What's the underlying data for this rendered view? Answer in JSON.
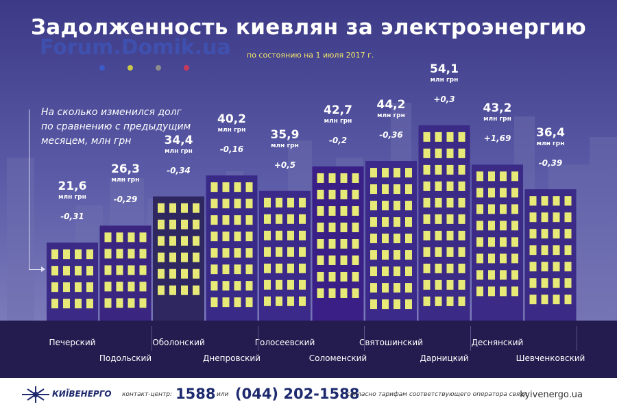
{
  "header": {
    "title": "Задолженность киевлян за электроэнергию",
    "subtitle": "по состоянию на 1 июля 2017 г.",
    "watermark": "Forum.Domik.ua"
  },
  "note": {
    "line1": "На сколько изменился долг",
    "line2": "по сравнению с предыдущим",
    "line3": "месяцем, млн грн"
  },
  "chart_data": {
    "type": "bar",
    "title": "Задолженность киевлян за электроэнергию",
    "subtitle": "по состоянию на 1 июля 2017 г.",
    "unit": "млн грн",
    "categories": [
      "Печерский",
      "Подольский",
      "Оболонский",
      "Днепровский",
      "Голосеевский",
      "Соломенский",
      "Святошинский",
      "Дарницкий",
      "Деснянский",
      "Шевченковский"
    ],
    "values": [
      21.6,
      26.3,
      34.4,
      40.2,
      35.9,
      42.7,
      44.2,
      54.1,
      43.2,
      36.4
    ],
    "value_labels": [
      "21,6",
      "26,3",
      "34,4",
      "40,2",
      "35,9",
      "42,7",
      "44,2",
      "54,1",
      "43,2",
      "36,4"
    ],
    "changes": [
      -0.31,
      -0.29,
      -0.34,
      -0.16,
      0.5,
      -0.2,
      -0.36,
      0.3,
      1.69,
      -0.39
    ],
    "change_labels": [
      "-0,31",
      "-0,29",
      "-0,34",
      "-0,16",
      "+0,5",
      "-0,2",
      "-0,36",
      "+0,3",
      "+1,69",
      "-0,39"
    ],
    "ylim": [
      0,
      60
    ]
  },
  "footer": {
    "logo": "КИЇВЕНЕРГО",
    "contact_label": "контакт-центр:",
    "short_number": "1588",
    "or_label": "или",
    "phone": "(044) 202-1588",
    "tariff_note": "согласно тарифам соответствующего оператора связи",
    "site": "kyivenergo.ua"
  },
  "colors": {
    "window": "#e8ea78",
    "ground": "#241b4e"
  }
}
